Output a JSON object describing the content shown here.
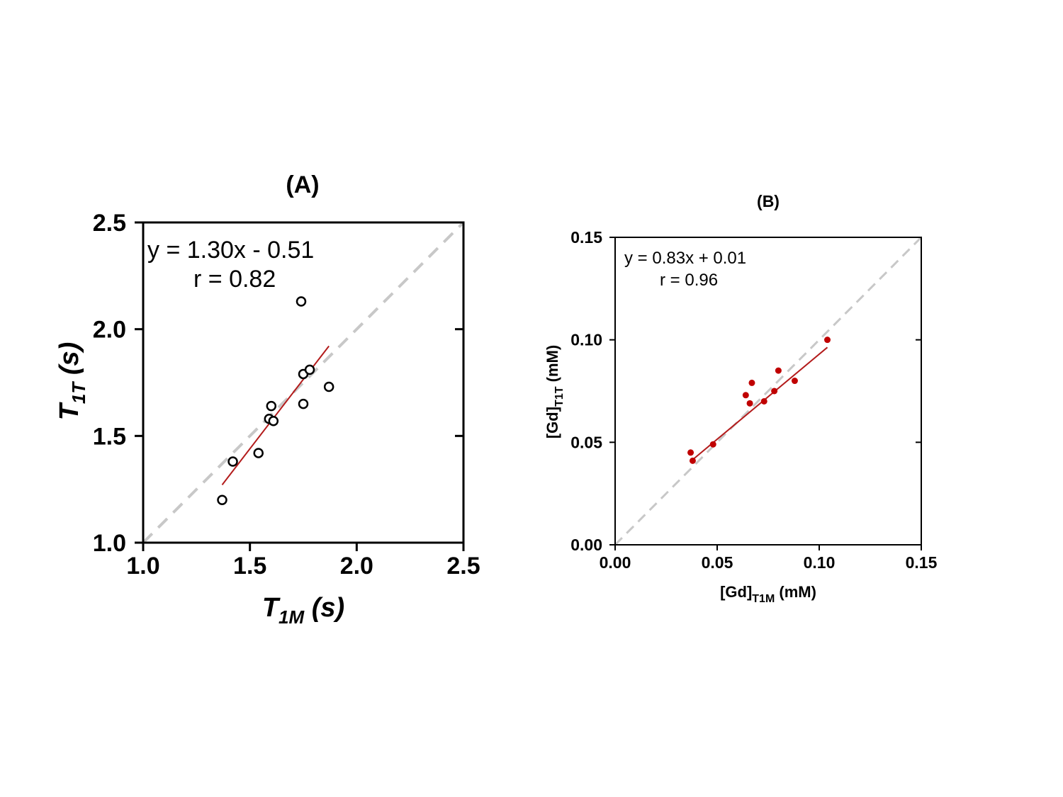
{
  "chart_data": [
    {
      "type": "scatter",
      "title": "(A)",
      "xlabel": {
        "main": "T",
        "sub": "1M",
        "unit": " (s)"
      },
      "ylabel": {
        "main": "T",
        "sub": "1T",
        "unit": " (s)"
      },
      "xlim": [
        1.0,
        2.5
      ],
      "ylim": [
        1.0,
        2.5
      ],
      "xticks": [
        1.0,
        1.5,
        2.0,
        2.5
      ],
      "yticks": [
        1.0,
        1.5,
        2.0,
        2.5
      ],
      "xtick_labels": [
        "1.0",
        "1.5",
        "2.0",
        "2.5"
      ],
      "ytick_labels": [
        "1.0",
        "1.5",
        "2.0",
        "2.5"
      ],
      "equation": "y = 1.30x - 0.51",
      "r_text": "r = 0.82",
      "points": [
        {
          "x": 1.37,
          "y": 1.2
        },
        {
          "x": 1.42,
          "y": 1.38
        },
        {
          "x": 1.54,
          "y": 1.42
        },
        {
          "x": 1.59,
          "y": 1.58
        },
        {
          "x": 1.6,
          "y": 1.64
        },
        {
          "x": 1.61,
          "y": 1.57
        },
        {
          "x": 1.74,
          "y": 2.13
        },
        {
          "x": 1.75,
          "y": 1.79
        },
        {
          "x": 1.75,
          "y": 1.65
        },
        {
          "x": 1.78,
          "y": 1.81
        },
        {
          "x": 1.87,
          "y": 1.73
        }
      ],
      "marker": "open-circle",
      "fit": {
        "slope": 1.3,
        "intercept": -0.51,
        "x_range": [
          1.37,
          1.87
        ],
        "color": "#b31b1b"
      },
      "identity_line": {
        "color": "#c8c8c8"
      }
    },
    {
      "type": "scatter",
      "title": "(B)",
      "xlabel": {
        "main": "[Gd]",
        "sub": "T1M",
        "unit": " (mM)"
      },
      "ylabel": {
        "main": "[Gd]",
        "sub": "T1T",
        "unit": " (mM)"
      },
      "xlim": [
        0.0,
        0.15
      ],
      "ylim": [
        0.0,
        0.15
      ],
      "xticks": [
        0.0,
        0.05,
        0.1,
        0.15
      ],
      "yticks": [
        0.0,
        0.05,
        0.1,
        0.15
      ],
      "xtick_labels": [
        "0.00",
        "0.05",
        "0.10",
        "0.15"
      ],
      "ytick_labels": [
        "0.00",
        "0.05",
        "0.10",
        "0.15"
      ],
      "equation": "y = 0.83x + 0.01",
      "r_text": "r = 0.96",
      "points": [
        {
          "x": 0.037,
          "y": 0.045
        },
        {
          "x": 0.038,
          "y": 0.041
        },
        {
          "x": 0.048,
          "y": 0.049
        },
        {
          "x": 0.064,
          "y": 0.073
        },
        {
          "x": 0.066,
          "y": 0.069
        },
        {
          "x": 0.067,
          "y": 0.079
        },
        {
          "x": 0.073,
          "y": 0.07
        },
        {
          "x": 0.078,
          "y": 0.075
        },
        {
          "x": 0.08,
          "y": 0.085
        },
        {
          "x": 0.088,
          "y": 0.08
        },
        {
          "x": 0.104,
          "y": 0.1
        }
      ],
      "marker": "filled-dot",
      "marker_color": "#c00000",
      "fit": {
        "slope": 0.83,
        "intercept": 0.01,
        "x_range": [
          0.037,
          0.104
        ],
        "color": "#b31b1b"
      },
      "identity_line": {
        "color": "#c8c8c8"
      }
    }
  ]
}
